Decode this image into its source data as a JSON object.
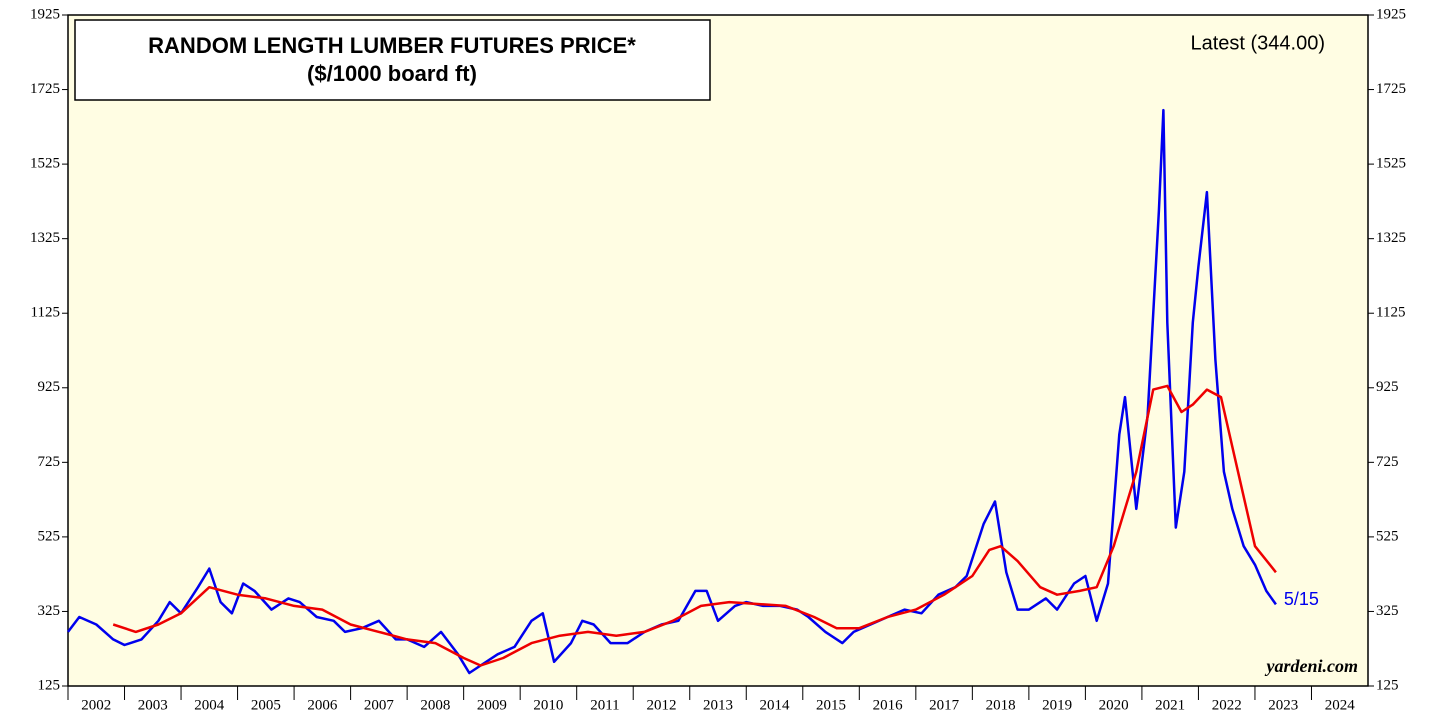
{
  "chart_data": {
    "type": "line",
    "title": "RANDOM LENGTH LUMBER FUTURES PRICE*",
    "subtitle": "($/1000 board ft)",
    "annotation": "Latest (344.00)",
    "end_label": "5/15",
    "source": "yardeni.com",
    "xlim": [
      2002,
      2025
    ],
    "xticks": [
      2002,
      2003,
      2004,
      2005,
      2006,
      2007,
      2008,
      2009,
      2010,
      2011,
      2012,
      2013,
      2014,
      2015,
      2016,
      2017,
      2018,
      2019,
      2020,
      2021,
      2022,
      2023,
      2024
    ],
    "ylim": [
      125,
      1925
    ],
    "yticks": [
      125,
      325,
      525,
      725,
      925,
      1125,
      1325,
      1525,
      1725,
      1925
    ],
    "series": [
      {
        "color": "#0000ee",
        "x": [
          2002.0,
          2002.2,
          2002.5,
          2002.8,
          2003.0,
          2003.3,
          2003.6,
          2003.8,
          2004.0,
          2004.3,
          2004.5,
          2004.7,
          2004.9,
          2005.1,
          2005.3,
          2005.6,
          2005.9,
          2006.1,
          2006.4,
          2006.7,
          2006.9,
          2007.2,
          2007.5,
          2007.8,
          2008.0,
          2008.3,
          2008.6,
          2008.9,
          2009.1,
          2009.3,
          2009.6,
          2009.9,
          2010.2,
          2010.4,
          2010.6,
          2010.9,
          2011.1,
          2011.3,
          2011.6,
          2011.9,
          2012.2,
          2012.5,
          2012.8,
          2013.1,
          2013.3,
          2013.5,
          2013.8,
          2014.0,
          2014.3,
          2014.6,
          2014.9,
          2015.1,
          2015.4,
          2015.7,
          2015.9,
          2016.2,
          2016.5,
          2016.8,
          2017.1,
          2017.4,
          2017.7,
          2017.9,
          2018.2,
          2018.4,
          2018.6,
          2018.8,
          2019.0,
          2019.3,
          2019.5,
          2019.8,
          2020.0,
          2020.2,
          2020.4,
          2020.6,
          2020.7,
          2020.9,
          2021.1,
          2021.3,
          2021.38,
          2021.45,
          2021.6,
          2021.75,
          2021.9,
          2022.0,
          2022.15,
          2022.3,
          2022.45,
          2022.6,
          2022.8,
          2023.0,
          2023.2,
          2023.37
        ],
        "values": [
          270,
          310,
          290,
          250,
          235,
          250,
          300,
          350,
          320,
          390,
          440,
          350,
          320,
          400,
          380,
          330,
          360,
          350,
          310,
          300,
          270,
          280,
          300,
          250,
          250,
          230,
          270,
          210,
          160,
          180,
          210,
          230,
          300,
          320,
          190,
          240,
          300,
          290,
          240,
          240,
          270,
          290,
          300,
          380,
          380,
          300,
          340,
          350,
          340,
          340,
          330,
          310,
          270,
          240,
          270,
          290,
          310,
          330,
          320,
          370,
          390,
          420,
          560,
          620,
          430,
          330,
          330,
          360,
          330,
          400,
          420,
          300,
          400,
          800,
          900,
          600,
          850,
          1400,
          1670,
          1100,
          550,
          700,
          1100,
          1250,
          1450,
          1000,
          700,
          600,
          500,
          450,
          380,
          344
        ]
      },
      {
        "color": "#ee0000",
        "x": [
          2002.8,
          2003.2,
          2003.6,
          2004.0,
          2004.5,
          2005.0,
          2005.5,
          2006.0,
          2006.5,
          2007.0,
          2007.5,
          2008.0,
          2008.5,
          2009.0,
          2009.3,
          2009.7,
          2010.2,
          2010.7,
          2011.2,
          2011.7,
          2012.2,
          2012.7,
          2013.2,
          2013.7,
          2014.2,
          2014.7,
          2015.2,
          2015.6,
          2016.0,
          2016.5,
          2017.0,
          2017.5,
          2018.0,
          2018.3,
          2018.5,
          2018.8,
          2019.2,
          2019.5,
          2019.9,
          2020.2,
          2020.5,
          2020.9,
          2021.2,
          2021.45,
          2021.7,
          2021.9,
          2022.15,
          2022.4,
          2022.7,
          2023.0,
          2023.37
        ],
        "values": [
          290,
          270,
          290,
          320,
          390,
          370,
          360,
          340,
          330,
          290,
          270,
          250,
          240,
          200,
          180,
          200,
          240,
          260,
          270,
          260,
          270,
          300,
          340,
          350,
          345,
          340,
          310,
          280,
          280,
          310,
          330,
          370,
          420,
          490,
          500,
          460,
          390,
          370,
          380,
          390,
          500,
          700,
          920,
          930,
          860,
          880,
          920,
          900,
          700,
          500,
          430
        ]
      }
    ]
  }
}
